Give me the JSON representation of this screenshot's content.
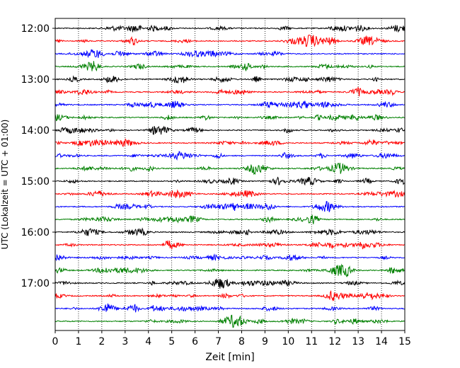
{
  "chart_data": {
    "type": "line",
    "title": "",
    "xlabel": "Zeit  [min]",
    "ylabel": "UTC (Lokalzeit = UTC + 01:00)",
    "xlim": [
      0,
      15
    ],
    "x_ticks": [
      "0",
      "1",
      "2",
      "3",
      "4",
      "5",
      "6",
      "7",
      "8",
      "9",
      "10",
      "11",
      "12",
      "13",
      "14",
      "15"
    ],
    "y_ticks": [
      "12:00",
      "13:00",
      "14:00",
      "15:00",
      "16:00",
      "17:00"
    ],
    "grid": "vertical dotted lines at each minute",
    "trace_interval_minutes": 15,
    "trace_colors": [
      "#000000",
      "#ff0000",
      "#0000ff",
      "#008000"
    ],
    "traces": [
      {
        "start": "12:00",
        "color": "#000000"
      },
      {
        "start": "12:15",
        "color": "#ff0000"
      },
      {
        "start": "12:30",
        "color": "#0000ff"
      },
      {
        "start": "12:45",
        "color": "#008000"
      },
      {
        "start": "13:00",
        "color": "#000000"
      },
      {
        "start": "13:15",
        "color": "#ff0000"
      },
      {
        "start": "13:30",
        "color": "#0000ff"
      },
      {
        "start": "13:45",
        "color": "#008000"
      },
      {
        "start": "14:00",
        "color": "#000000"
      },
      {
        "start": "14:15",
        "color": "#ff0000"
      },
      {
        "start": "14:30",
        "color": "#0000ff"
      },
      {
        "start": "14:45",
        "color": "#008000"
      },
      {
        "start": "15:00",
        "color": "#000000"
      },
      {
        "start": "15:15",
        "color": "#ff0000"
      },
      {
        "start": "15:30",
        "color": "#0000ff"
      },
      {
        "start": "15:45",
        "color": "#008000"
      },
      {
        "start": "16:00",
        "color": "#000000"
      },
      {
        "start": "16:15",
        "color": "#ff0000"
      },
      {
        "start": "16:30",
        "color": "#0000ff"
      },
      {
        "start": "16:45",
        "color": "#008000"
      },
      {
        "start": "17:00",
        "color": "#000000"
      },
      {
        "start": "17:15",
        "color": "#ff0000"
      },
      {
        "start": "17:30",
        "color": "#0000ff"
      },
      {
        "start": "17:45",
        "color": "#008000"
      }
    ]
  }
}
